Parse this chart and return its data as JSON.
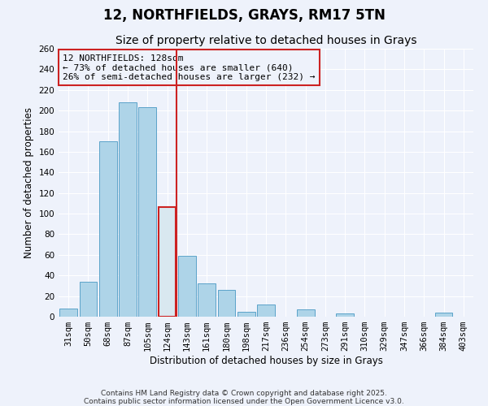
{
  "title": "12, NORTHFIELDS, GRAYS, RM17 5TN",
  "subtitle": "Size of property relative to detached houses in Grays",
  "xlabel": "Distribution of detached houses by size in Grays",
  "ylabel": "Number of detached properties",
  "categories": [
    "31sqm",
    "50sqm",
    "68sqm",
    "87sqm",
    "105sqm",
    "124sqm",
    "143sqm",
    "161sqm",
    "180sqm",
    "198sqm",
    "217sqm",
    "236sqm",
    "254sqm",
    "273sqm",
    "291sqm",
    "310sqm",
    "329sqm",
    "347sqm",
    "366sqm",
    "384sqm",
    "403sqm"
  ],
  "values": [
    8,
    34,
    170,
    208,
    203,
    106,
    59,
    32,
    26,
    5,
    12,
    0,
    7,
    0,
    3,
    0,
    0,
    0,
    0,
    4,
    0
  ],
  "bar_color": "#aed4e8",
  "bar_edge_color": "#5ba3c9",
  "highlight_bar_index": 5,
  "highlight_bar_color": "#cc2222",
  "vline_color": "#cc2222",
  "annotation_title": "12 NORTHFIELDS: 128sqm",
  "annotation_line1": "← 73% of detached houses are smaller (640)",
  "annotation_line2": "26% of semi-detached houses are larger (232) →",
  "annotation_box_color": "#cc2222",
  "ylim": [
    0,
    260
  ],
  "yticks": [
    0,
    20,
    40,
    60,
    80,
    100,
    120,
    140,
    160,
    180,
    200,
    220,
    240,
    260
  ],
  "footnote1": "Contains HM Land Registry data © Crown copyright and database right 2025.",
  "footnote2": "Contains public sector information licensed under the Open Government Licence v3.0.",
  "background_color": "#eef2fb",
  "grid_color": "#ffffff",
  "title_fontsize": 12,
  "subtitle_fontsize": 10,
  "axis_label_fontsize": 8.5,
  "tick_fontsize": 7.5,
  "annotation_fontsize": 8,
  "footnote_fontsize": 6.5
}
